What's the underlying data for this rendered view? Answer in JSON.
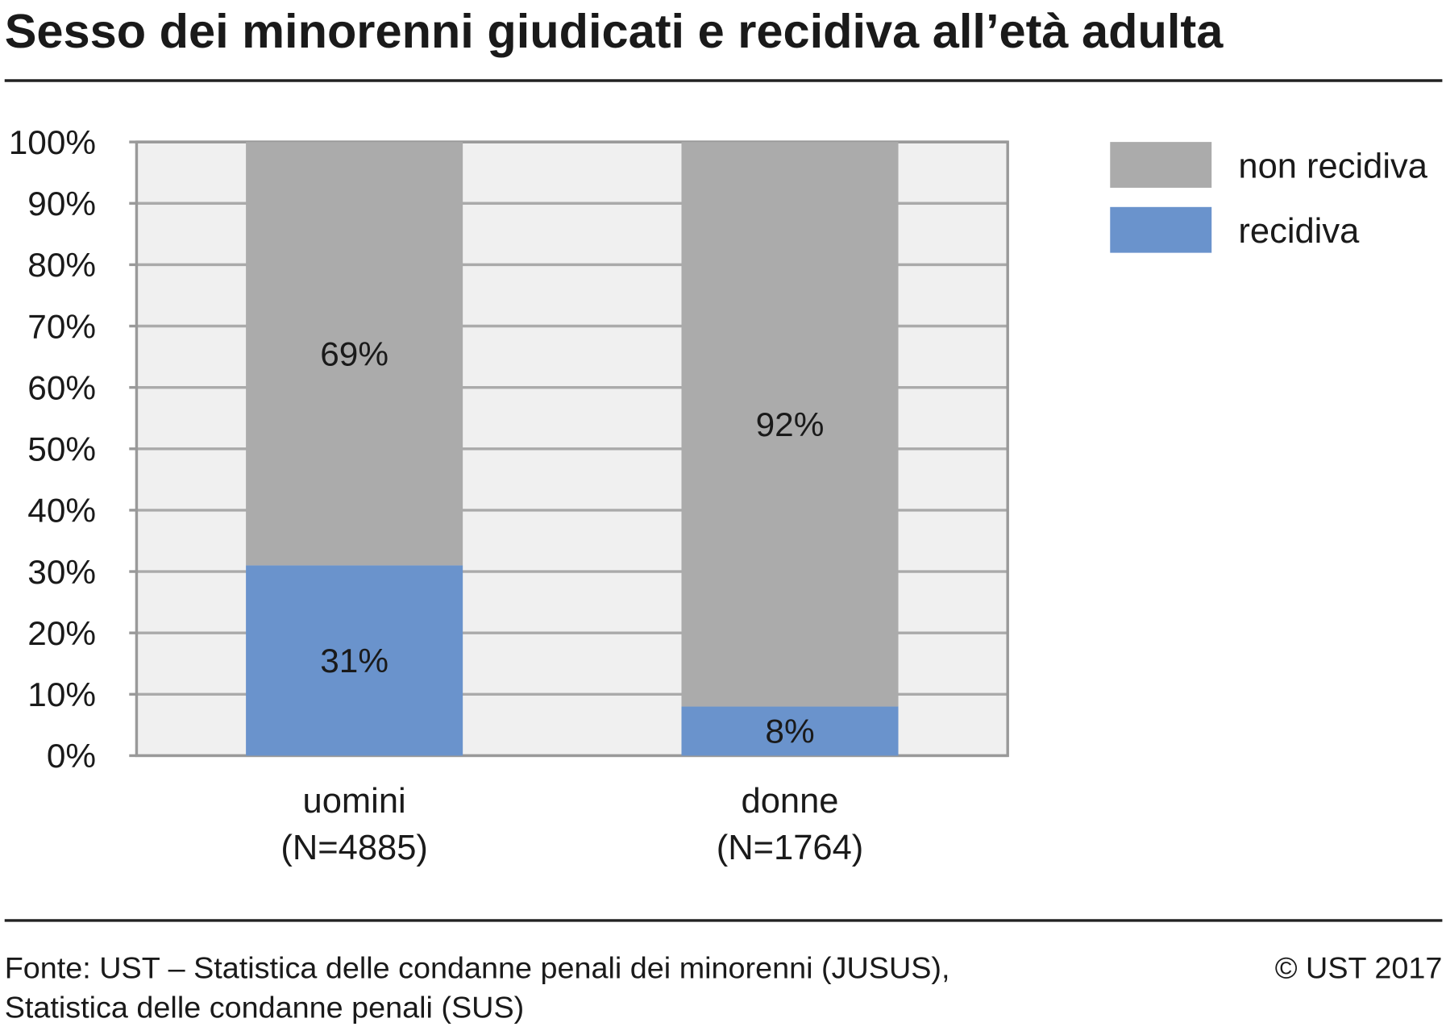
{
  "chart_data": {
    "type": "stacked_bar",
    "title": "Sesso dei minorenni giudicati e recidiva all’età adulta",
    "categories": [
      "uomini",
      "donne"
    ],
    "category_notes": [
      "(N=4885)",
      "(N=1764)"
    ],
    "series": [
      {
        "name": "recidiva",
        "color": "#6a93cc",
        "values": [
          31,
          8
        ],
        "value_labels": [
          "31%",
          "8%"
        ]
      },
      {
        "name": "non recidiva",
        "color": "#ababab",
        "values": [
          69,
          92
        ],
        "value_labels": [
          "69%",
          "92%"
        ]
      }
    ],
    "ylim": [
      0,
      100
    ],
    "yticks": [
      {
        "value": 0,
        "label": "0%"
      },
      {
        "value": 10,
        "label": "10%"
      },
      {
        "value": 20,
        "label": "20%"
      },
      {
        "value": 30,
        "label": "30%"
      },
      {
        "value": 40,
        "label": "40%"
      },
      {
        "value": 50,
        "label": "50%"
      },
      {
        "value": 60,
        "label": "60%"
      },
      {
        "value": 70,
        "label": "70%"
      },
      {
        "value": 80,
        "label": "80%"
      },
      {
        "value": 90,
        "label": "90%"
      },
      {
        "value": 100,
        "label": "100%"
      }
    ],
    "grid": true,
    "legend_position": "right",
    "source": [
      "Fonte: UST – Statistica delle condanne penali dei minorenni (JUSUS),",
      "Statistica delle condanne penali (SUS)"
    ],
    "copyright": "© UST 2017"
  }
}
